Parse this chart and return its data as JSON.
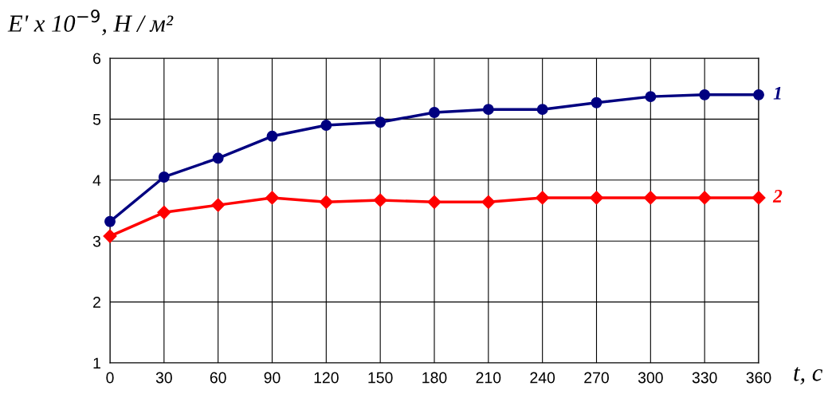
{
  "chart_data": {
    "type": "line",
    "xlabel": "t, c",
    "ylabel": "E' x 10$^{−9}$, H / м²",
    "x": [
      0,
      30,
      60,
      90,
      120,
      150,
      180,
      210,
      240,
      270,
      300,
      330,
      360
    ],
    "series": [
      {
        "name": "1",
        "color": "#000080",
        "marker": "circle",
        "values": [
          3.32,
          4.05,
          4.36,
          4.72,
          4.9,
          4.95,
          5.11,
          5.16,
          5.16,
          5.27,
          5.37,
          5.4,
          5.4
        ]
      },
      {
        "name": "2",
        "color": "#ff0000",
        "marker": "diamond",
        "values": [
          3.08,
          3.47,
          3.59,
          3.71,
          3.64,
          3.67,
          3.64,
          3.64,
          3.71,
          3.71,
          3.71,
          3.71,
          3.71
        ]
      }
    ],
    "xlim": [
      0,
      360
    ],
    "xticks": [
      0,
      30,
      60,
      90,
      120,
      150,
      180,
      210,
      240,
      270,
      300,
      330,
      360
    ],
    "ylim": [
      1,
      6
    ],
    "yticks": [
      1,
      2,
      3,
      4,
      5,
      6
    ],
    "grid": true,
    "legend": false
  }
}
